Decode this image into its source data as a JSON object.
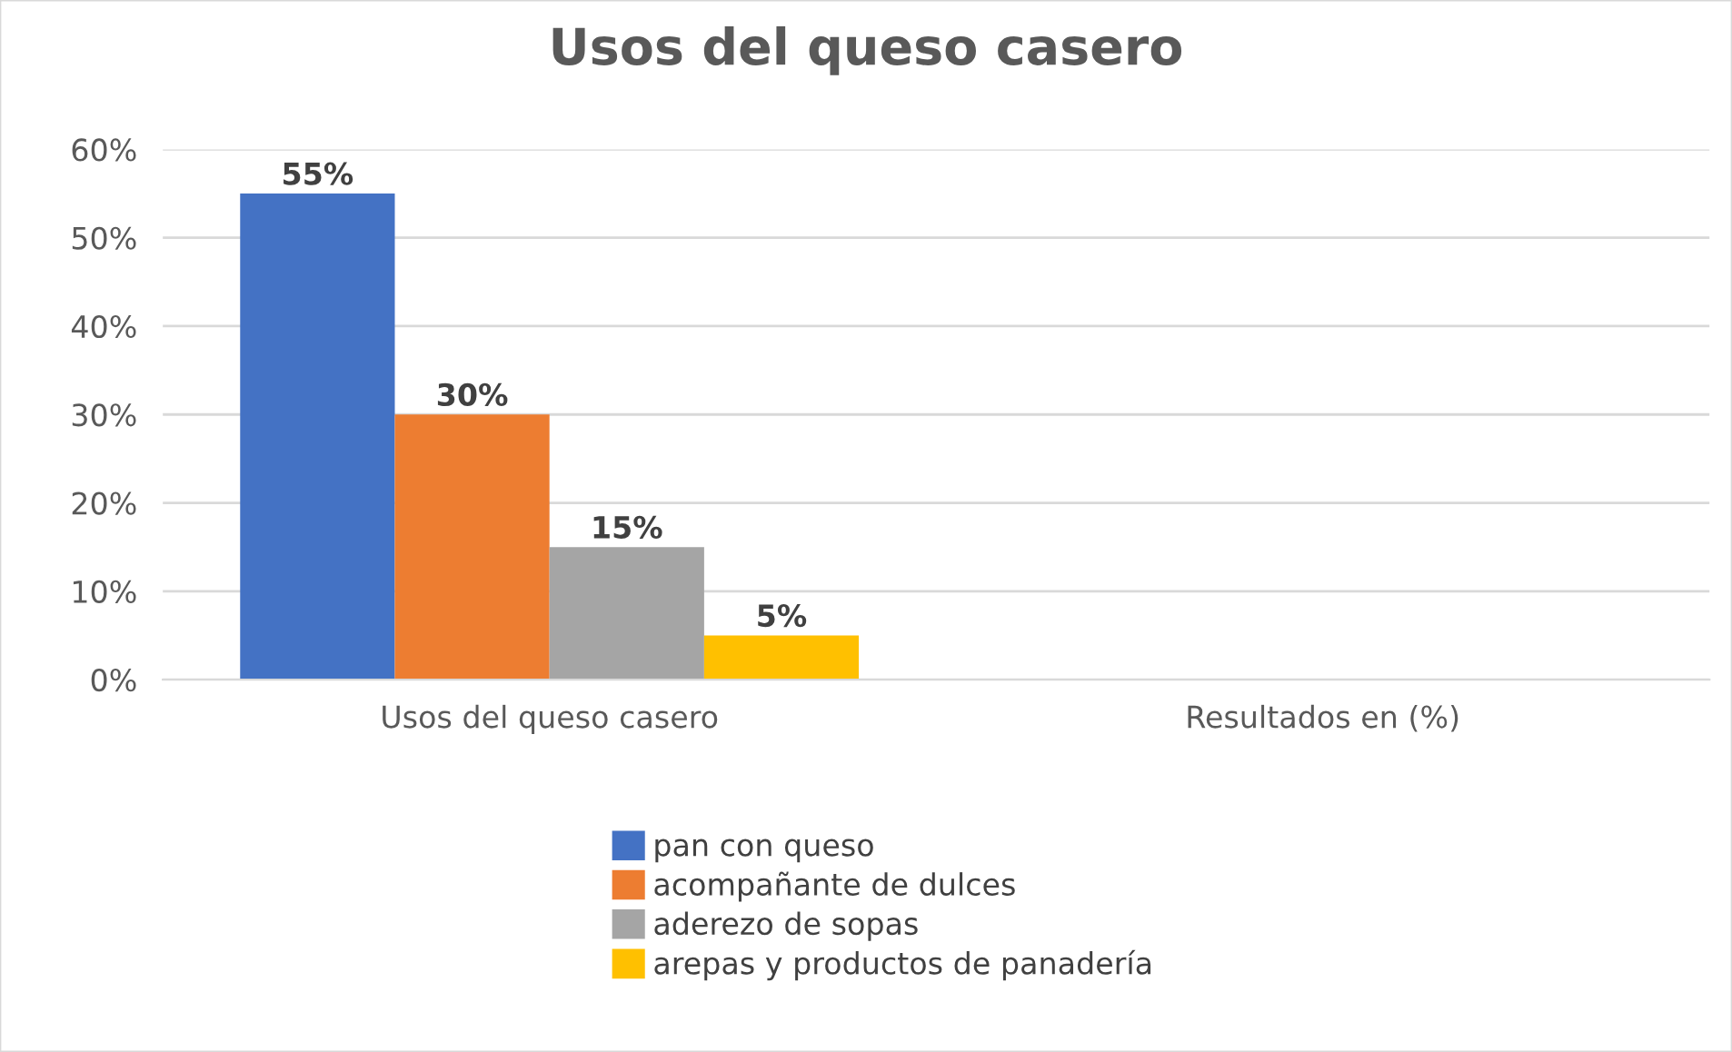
{
  "chart_data": {
    "type": "bar",
    "title": "Usos del queso casero",
    "categories": [
      "Usos del queso casero",
      "Resultados en (%)"
    ],
    "series": [
      {
        "name": "pan con queso",
        "color": "#4472c4",
        "values": [
          55,
          null
        ],
        "value_labels": [
          "55%",
          null
        ]
      },
      {
        "name": "acompañante de dulces",
        "color": "#ed7d31",
        "values": [
          30,
          null
        ],
        "value_labels": [
          "30%",
          null
        ]
      },
      {
        "name": "aderezo de sopas",
        "color": "#a5a5a5",
        "values": [
          15,
          null
        ],
        "value_labels": [
          "15%",
          null
        ]
      },
      {
        "name": "arepas y productos de panadería",
        "color": "#ffc000",
        "values": [
          5,
          null
        ],
        "value_labels": [
          "5%",
          null
        ]
      }
    ],
    "ylim": [
      0,
      60
    ],
    "yticks": [
      {
        "value": 0,
        "label": "0%"
      },
      {
        "value": 10,
        "label": "10%"
      },
      {
        "value": 20,
        "label": "20%"
      },
      {
        "value": 30,
        "label": "30%"
      },
      {
        "value": 40,
        "label": "40%"
      },
      {
        "value": 50,
        "label": "50%"
      },
      {
        "value": 60,
        "label": "60%"
      }
    ],
    "grid": "y",
    "legend": "bottom"
  }
}
